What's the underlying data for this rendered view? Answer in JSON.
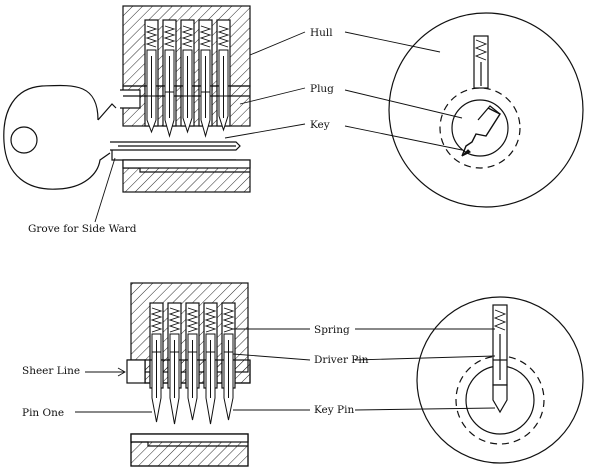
{
  "colors": {
    "ink": "#111111",
    "background": "#ffffff"
  },
  "labels": {
    "hull": "Hull",
    "plug": "Plug",
    "key": "Key",
    "groove": "Grove for Side Ward",
    "spring": "Spring",
    "driver_pin": "Driver Pin",
    "key_pin": "Key Pin",
    "sheer_line": "Sheer Line",
    "pin_one": "Pin One"
  }
}
